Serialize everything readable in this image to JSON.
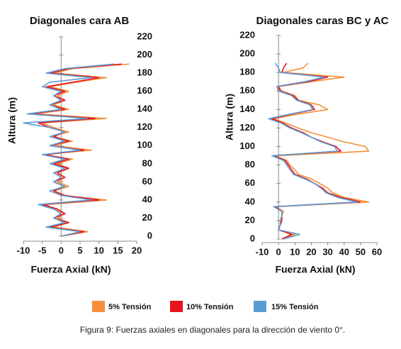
{
  "chart_data": [
    {
      "type": "line",
      "title": "Diagonales cara AB",
      "x_label": "Fuerza Axial (kN)",
      "y_label": "Altura (m)",
      "y": [
        0,
        5,
        10,
        15,
        20,
        25,
        30,
        35,
        40,
        45,
        50,
        55,
        60,
        65,
        70,
        75,
        80,
        85,
        90,
        95,
        100,
        105,
        110,
        115,
        120,
        125,
        130,
        135,
        140,
        145,
        150,
        155,
        160,
        165,
        170,
        175,
        180,
        185,
        190
      ],
      "series": [
        {
          "name": "5% Tensión",
          "color": "#f4903a",
          "values": [
            0,
            7,
            -2,
            2,
            -1,
            1,
            -2,
            -4,
            12,
            0,
            -2,
            2,
            -1,
            1,
            -2,
            2,
            -1,
            3,
            -5,
            8,
            -2,
            3,
            -3,
            2,
            -2,
            -5,
            12,
            -7,
            2,
            -2,
            1,
            -1,
            2,
            -3,
            4,
            12,
            -2,
            3,
            18
          ]
        },
        {
          "name": "10% Tensión",
          "color": "#e8141c",
          "values": [
            0,
            6,
            -3,
            2,
            -2,
            1,
            -1,
            -5,
            10,
            1,
            -2,
            1,
            -2,
            1,
            -1,
            2,
            -2,
            2,
            -4,
            6,
            -3,
            2,
            -2,
            1,
            -3,
            -6,
            9,
            -8,
            1,
            -3,
            1,
            -2,
            1,
            -4,
            3,
            10,
            -3,
            2,
            16
          ]
        },
        {
          "name": "15% Tensión",
          "color": "#5b9bd5",
          "values": [
            0,
            5,
            -4,
            1,
            -2,
            0,
            -2,
            -6,
            8,
            0,
            -3,
            1,
            -2,
            0,
            -2,
            1,
            -3,
            1,
            -5,
            5,
            -3,
            1,
            -3,
            1,
            -3,
            -10,
            7,
            -9,
            0,
            -3,
            0,
            -2,
            0,
            -5,
            -3,
            8,
            -4,
            1,
            14
          ]
        }
      ],
      "xlim": [
        -10,
        20
      ],
      "xticks": [
        -10,
        -5,
        0,
        5,
        10,
        15,
        20
      ],
      "ylim": [
        0,
        220
      ],
      "yticks": [
        0,
        20,
        40,
        60,
        80,
        100,
        120,
        140,
        160,
        180,
        200,
        220
      ]
    },
    {
      "type": "line",
      "title": "Diagonales caras BC y AC",
      "x_label": "Fuerza Axial (kN)",
      "y_label": "Altura (m)",
      "y": [
        0,
        5,
        10,
        15,
        20,
        25,
        30,
        35,
        40,
        45,
        50,
        55,
        60,
        65,
        70,
        75,
        80,
        85,
        90,
        95,
        100,
        105,
        110,
        115,
        120,
        125,
        130,
        135,
        140,
        145,
        150,
        155,
        160,
        165,
        170,
        175,
        180,
        185,
        190
      ],
      "series": [
        {
          "color": "#f4903a",
          "values": [
            2,
            10,
            0,
            1,
            2,
            2,
            3,
            -2,
            55,
            40,
            33,
            30,
            25,
            20,
            12,
            10,
            7,
            5,
            -2,
            55,
            53,
            40,
            30,
            20,
            12,
            5,
            -3,
            12,
            30,
            25,
            12,
            10,
            2,
            0,
            20,
            40,
            3,
            15,
            18
          ]
        },
        {
          "color": "#e8141c",
          "values": [
            2,
            8,
            0,
            1,
            2,
            2,
            2,
            -2,
            50,
            38,
            30,
            27,
            22,
            17,
            10,
            8,
            6,
            4,
            -3,
            38,
            35,
            27,
            20,
            15,
            8,
            3,
            -4,
            8,
            22,
            20,
            12,
            9,
            1,
            0,
            18,
            30,
            2,
            3,
            5
          ]
        },
        {
          "color": "#5b9bd5",
          "values": [
            3,
            13,
            0,
            1,
            1,
            2,
            2,
            -3,
            48,
            36,
            29,
            26,
            22,
            16,
            9,
            7,
            5,
            3,
            -4,
            36,
            34,
            26,
            20,
            14,
            7,
            2,
            -6,
            7,
            21,
            19,
            11,
            8,
            0,
            -1,
            16,
            28,
            1,
            0,
            -2
          ]
        }
      ],
      "xlim": [
        -10,
        60
      ],
      "xticks": [
        -10,
        0,
        10,
        20,
        30,
        40,
        50,
        60
      ],
      "ylim": [
        0,
        220
      ],
      "yticks": [
        0,
        20,
        40,
        60,
        80,
        100,
        120,
        140,
        160,
        180,
        200,
        220
      ]
    }
  ],
  "caption": "Figura 9: Fuerzas axiales en diagonales para la dirección de viento 0°."
}
